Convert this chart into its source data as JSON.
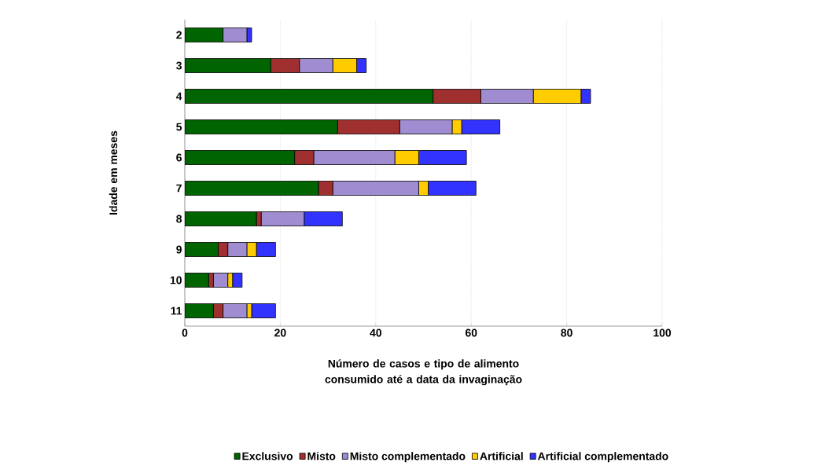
{
  "chart_data": {
    "type": "bar",
    "orientation": "horizontal",
    "stacked": true,
    "ylabel": "Idade em meses",
    "xlabel": "Número de casos e tipo de alimento consumido até a data da invaginação",
    "categories": [
      "2",
      "3",
      "4",
      "5",
      "6",
      "7",
      "8",
      "9",
      "10",
      "11"
    ],
    "series": [
      {
        "name": "Exclusivo",
        "color": "#006400",
        "values": [
          8,
          18,
          52,
          32,
          23,
          28,
          15,
          7,
          5,
          6
        ]
      },
      {
        "name": "Misto",
        "color": "#a03030",
        "values": [
          0,
          6,
          10,
          13,
          4,
          3,
          1,
          2,
          1,
          2
        ]
      },
      {
        "name": "Misto complementado",
        "color": "#a08cd0",
        "values": [
          5,
          7,
          11,
          11,
          17,
          18,
          9,
          4,
          3,
          5
        ]
      },
      {
        "name": "Artificial",
        "color": "#ffcc00",
        "values": [
          0,
          5,
          10,
          2,
          5,
          2,
          0,
          2,
          1,
          1
        ]
      },
      {
        "name": "Artificial complementado",
        "color": "#3333ff",
        "values": [
          1,
          2,
          2,
          8,
          10,
          10,
          8,
          4,
          2,
          5
        ]
      }
    ],
    "xlim": [
      0,
      100
    ],
    "xticks": [
      0,
      20,
      40,
      60,
      80,
      100
    ],
    "grid": "x",
    "legend": "bottom"
  }
}
